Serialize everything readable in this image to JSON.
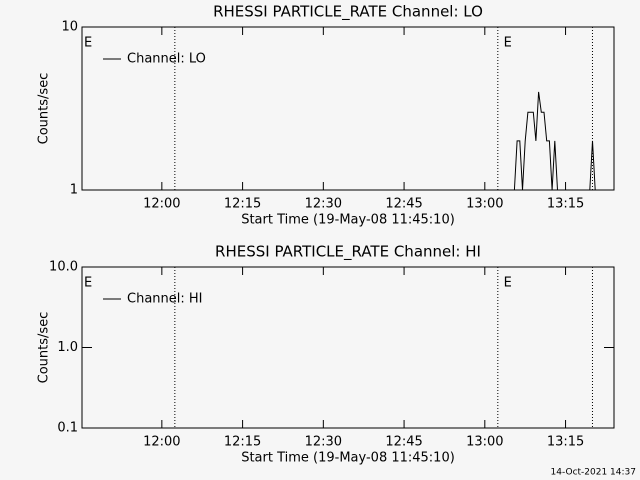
{
  "chart_data": [
    {
      "type": "line",
      "title": "RHESSI PARTICLE_RATE Channel: LO",
      "xlabel": "Start Time (19-May-08 11:45:10)",
      "ylabel": "Counts/sec",
      "x": [
        "13:05:30",
        "13:06:00",
        "13:06:30",
        "13:07:00",
        "13:07:30",
        "13:08:00",
        "13:08:30",
        "13:09:00",
        "13:09:30",
        "13:10:00",
        "13:10:30",
        "13:11:00",
        "13:11:30",
        "13:12:00",
        "13:12:30",
        "13:13:00",
        "13:13:30",
        "13:14:00",
        "13:19:30",
        "13:20:00",
        "13:20:30"
      ],
      "series": [
        {
          "name": "Channel: LO",
          "color": "#000000",
          "values": [
            1,
            2,
            2,
            1,
            2,
            3,
            3,
            3,
            2,
            4,
            3,
            3,
            2,
            2,
            1,
            2,
            1,
            1,
            1,
            2,
            1
          ]
        }
      ],
      "xlim": [
        "11:45:10",
        "13:24:00"
      ],
      "xticks": [
        "12:00",
        "12:15",
        "12:30",
        "12:45",
        "13:00",
        "13:15"
      ],
      "ylim": [
        1,
        10
      ],
      "yticks": [
        1,
        10
      ],
      "log_y": true,
      "vlines": [
        "12:02:25",
        "13:02:25",
        "13:20:00"
      ],
      "annotations": [
        {
          "text": "E",
          "x": "11:45:10"
        },
        {
          "text": "E",
          "x": "13:03:08"
        }
      ]
    },
    {
      "type": "line",
      "title": "RHESSI PARTICLE_RATE Channel: HI",
      "xlabel": "Start Time (19-May-08 11:45:10)",
      "ylabel": "Counts/sec",
      "x": [],
      "series": [
        {
          "name": "Channel: HI",
          "color": "#000000",
          "values": []
        }
      ],
      "xlim": [
        "11:45:10",
        "13:24:00"
      ],
      "xticks": [
        "12:00",
        "12:15",
        "12:30",
        "12:45",
        "13:00",
        "13:15"
      ],
      "ylim": [
        0.1,
        10
      ],
      "yticks": [
        {
          "value": 0.1,
          "label": "0.1"
        },
        {
          "value": 1,
          "label": "1.0"
        },
        {
          "value": 10,
          "label": "10.0"
        }
      ],
      "log_y": true,
      "vlines": [
        "12:02:25",
        "13:02:25",
        "13:20:00"
      ],
      "annotations": [
        {
          "text": "E",
          "x": "11:45:10"
        },
        {
          "text": "E",
          "x": "13:03:08"
        }
      ]
    }
  ],
  "footer": "14-Oct-2021 14:37"
}
